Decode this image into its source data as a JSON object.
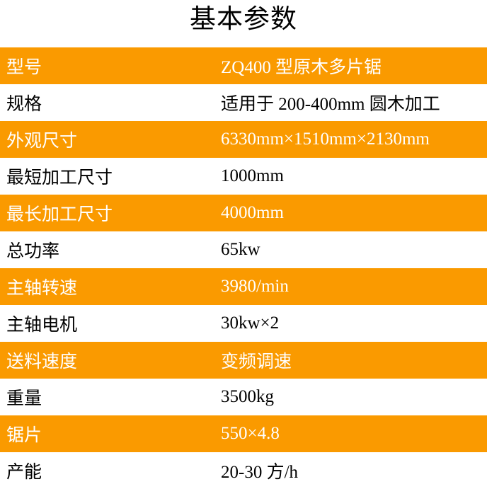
{
  "title": "基本参数",
  "theme": {
    "accent_orange": "#FA9A00",
    "text_on_orange": "#FFFFFF",
    "text_on_white": "#000000"
  },
  "table": {
    "rows": [
      {
        "label": "型号",
        "value": "ZQ400 型原木多片锯",
        "highlight": true
      },
      {
        "label": "规格",
        "value": "适用于 200-400mm 圆木加工",
        "highlight": false
      },
      {
        "label": "外观尺寸",
        "value": "6330mm×1510mm×2130mm",
        "highlight": true
      },
      {
        "label": "最短加工尺寸",
        "value": "1000mm",
        "highlight": false
      },
      {
        "label": "最长加工尺寸",
        "value": "4000mm",
        "highlight": true
      },
      {
        "label": "总功率",
        "value": "65kw",
        "highlight": false
      },
      {
        "label": "主轴转速",
        "value": "3980/min",
        "highlight": true
      },
      {
        "label": "主轴电机",
        "value": "30kw×2",
        "highlight": false
      },
      {
        "label": "送料速度",
        "value": "变频调速",
        "highlight": true
      },
      {
        "label": "重量",
        "value": "3500kg",
        "highlight": false
      },
      {
        "label": "锯片",
        "value": "550×4.8",
        "highlight": true
      },
      {
        "label": "产能",
        "value": "20-30 方/h",
        "highlight": false
      }
    ]
  }
}
